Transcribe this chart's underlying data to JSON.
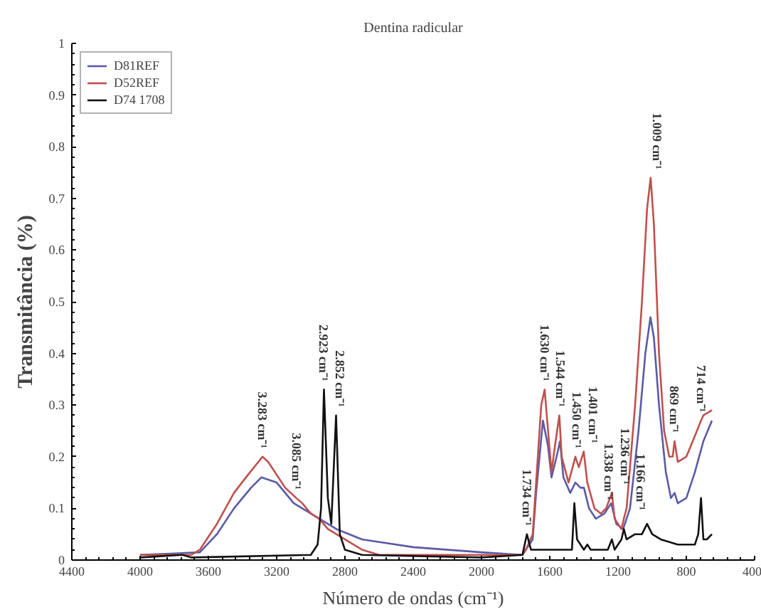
{
  "chart_data": {
    "type": "line",
    "title": "Dentina radicular",
    "xlabel": "Número de ondas (cm⁻¹)",
    "ylabel": "Transmitância (%)",
    "xlim": [
      4400,
      400
    ],
    "ylim": [
      0,
      1
    ],
    "xticks": [
      4400,
      4000,
      3600,
      3200,
      2800,
      2400,
      2000,
      1600,
      1200,
      800,
      400
    ],
    "yticks": [
      0,
      0.1,
      0.2,
      0.3,
      0.4,
      0.5,
      0.6,
      0.7,
      0.8,
      0.9,
      1
    ],
    "grid": false,
    "legend": "top left",
    "marker": "none",
    "line_style": "solid",
    "series": [
      {
        "name": "D81REF",
        "color": "#5a5aa8",
        "x": [
          4000,
          3650,
          3550,
          3450,
          3350,
          3290,
          3200,
          3100,
          3050,
          2950,
          2850,
          2700,
          2400,
          2000,
          1760,
          1700,
          1680,
          1640,
          1610,
          1590,
          1560,
          1540,
          1520,
          1480,
          1450,
          1420,
          1400,
          1370,
          1330,
          1280,
          1240,
          1210,
          1170,
          1130,
          1080,
          1040,
          1010,
          990,
          960,
          920,
          890,
          869,
          850,
          800,
          750,
          700,
          650
        ],
        "values": [
          0.01,
          0.015,
          0.05,
          0.1,
          0.14,
          0.16,
          0.15,
          0.11,
          0.1,
          0.08,
          0.06,
          0.04,
          0.025,
          0.015,
          0.01,
          0.04,
          0.13,
          0.27,
          0.22,
          0.16,
          0.2,
          0.23,
          0.16,
          0.13,
          0.15,
          0.14,
          0.14,
          0.1,
          0.08,
          0.09,
          0.11,
          0.07,
          0.06,
          0.1,
          0.25,
          0.4,
          0.47,
          0.43,
          0.3,
          0.17,
          0.12,
          0.13,
          0.11,
          0.12,
          0.17,
          0.23,
          0.27
        ]
      },
      {
        "name": "D52REF",
        "color": "#c0504d",
        "x": [
          4000,
          3700,
          3650,
          3550,
          3450,
          3380,
          3283,
          3250,
          3150,
          3085,
          3050,
          3000,
          2950,
          2900,
          2800,
          2700,
          2600,
          2000,
          1760,
          1740,
          1700,
          1680,
          1650,
          1630,
          1610,
          1590,
          1570,
          1544,
          1530,
          1490,
          1450,
          1430,
          1401,
          1380,
          1338,
          1300,
          1270,
          1236,
          1220,
          1180,
          1166,
          1150,
          1100,
          1060,
          1030,
          1009,
          990,
          960,
          930,
          900,
          880,
          869,
          850,
          800,
          750,
          714,
          700,
          650
        ],
        "values": [
          0.01,
          0.01,
          0.02,
          0.07,
          0.13,
          0.16,
          0.2,
          0.19,
          0.14,
          0.12,
          0.11,
          0.09,
          0.08,
          0.06,
          0.04,
          0.02,
          0.01,
          0.01,
          0.01,
          0.02,
          0.05,
          0.15,
          0.3,
          0.33,
          0.25,
          0.17,
          0.22,
          0.28,
          0.2,
          0.15,
          0.2,
          0.18,
          0.21,
          0.15,
          0.1,
          0.09,
          0.1,
          0.13,
          0.08,
          0.06,
          0.08,
          0.1,
          0.3,
          0.5,
          0.68,
          0.74,
          0.65,
          0.4,
          0.25,
          0.2,
          0.2,
          0.23,
          0.19,
          0.2,
          0.24,
          0.27,
          0.28,
          0.29
        ]
      },
      {
        "name": "D74 1708",
        "color": "#111111",
        "x": [
          4000,
          3750,
          3700,
          3000,
          2960,
          2940,
          2923,
          2900,
          2880,
          2852,
          2830,
          2800,
          2700,
          2000,
          1760,
          1734,
          1710,
          1600,
          1470,
          1456,
          1440,
          1400,
          1380,
          1360,
          1260,
          1236,
          1220,
          1180,
          1166,
          1150,
          1100,
          1060,
          1030,
          1000,
          950,
          850,
          750,
          730,
          714,
          700,
          680,
          650
        ],
        "values": [
          0.005,
          0.01,
          0.005,
          0.01,
          0.03,
          0.1,
          0.33,
          0.12,
          0.07,
          0.28,
          0.05,
          0.02,
          0.01,
          0.005,
          0.01,
          0.05,
          0.02,
          0.02,
          0.02,
          0.11,
          0.04,
          0.02,
          0.03,
          0.02,
          0.02,
          0.04,
          0.02,
          0.04,
          0.06,
          0.04,
          0.05,
          0.05,
          0.07,
          0.05,
          0.04,
          0.03,
          0.03,
          0.05,
          0.12,
          0.04,
          0.04,
          0.05
        ]
      }
    ],
    "annotations": [
      {
        "text": "3.283 cm⁻¹",
        "x": 3283,
        "y": 0.2
      },
      {
        "text": "3.085 cm⁻¹",
        "x": 3085,
        "y": 0.12
      },
      {
        "text": "2.923 cm⁻¹",
        "x": 2923,
        "y": 0.33
      },
      {
        "text": "2.852 cm⁻¹",
        "x": 2852,
        "y": 0.28
      },
      {
        "text": "1.734 cm⁻¹",
        "x": 1734,
        "y": 0.05
      },
      {
        "text": "1.630 cm⁻¹",
        "x": 1630,
        "y": 0.33
      },
      {
        "text": "1.544 cm⁻¹",
        "x": 1544,
        "y": 0.28
      },
      {
        "text": "1.450 cm⁻¹",
        "x": 1450,
        "y": 0.2
      },
      {
        "text": "1.401 cm⁻¹",
        "x": 1401,
        "y": 0.21
      },
      {
        "text": "1.338 cm⁻¹",
        "x": 1338,
        "y": 0.1
      },
      {
        "text": "1.236 cm⁻¹",
        "x": 1236,
        "y": 0.13
      },
      {
        "text": "1.166 cm⁻¹",
        "x": 1166,
        "y": 0.08
      },
      {
        "text": "1.009 cm⁻¹",
        "x": 1009,
        "y": 0.74
      },
      {
        "text": "869 cm⁻¹",
        "x": 869,
        "y": 0.23
      },
      {
        "text": "714 cm⁻¹",
        "x": 714,
        "y": 0.27
      }
    ]
  }
}
